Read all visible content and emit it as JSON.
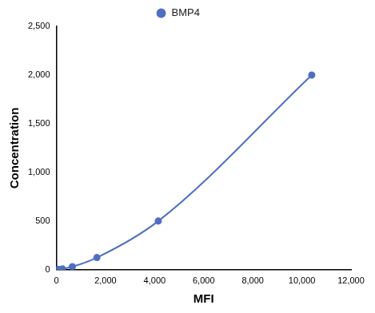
{
  "chart_data": {
    "type": "line",
    "x_label": "MFI",
    "y_label": "Concentration",
    "x": [
      30,
      100,
      250,
      650,
      1650,
      4150,
      10400
    ],
    "series": [
      {
        "name": "BMP4",
        "color": "#4f6fc0",
        "marker": "circle",
        "line_style": "solid",
        "values": [
          0,
          2,
          8,
          31,
          125,
          500,
          2000
        ]
      }
    ],
    "xlim": [
      0,
      12000
    ],
    "xticks": [
      0,
      2000,
      4000,
      6000,
      8000,
      10000,
      12000
    ],
    "ylim": [
      0,
      2500
    ],
    "yticks": [
      0,
      500,
      1000,
      1500,
      2000,
      2500
    ],
    "grid": false,
    "legend": "top"
  }
}
